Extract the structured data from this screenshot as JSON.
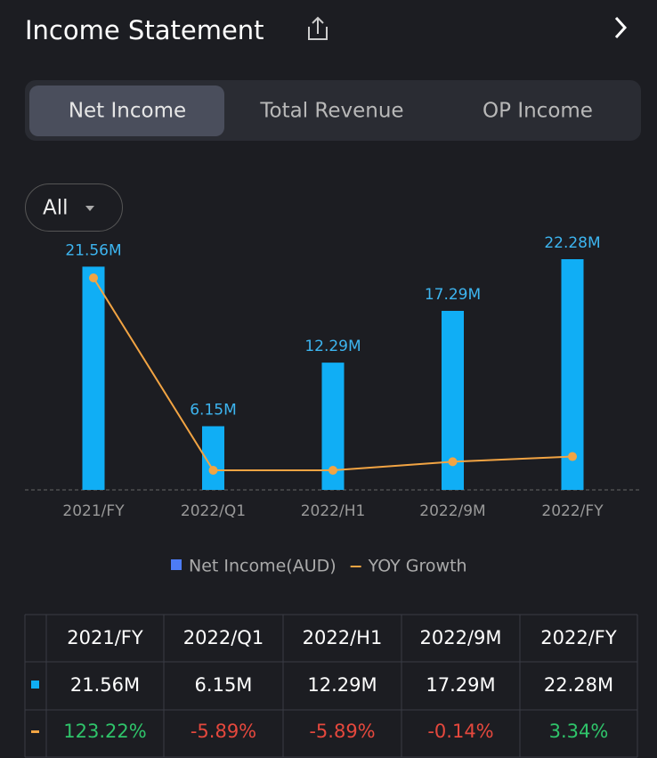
{
  "header": {
    "title": "Income Statement"
  },
  "tabs": [
    "Net Income",
    "Total Revenue",
    "OP Income"
  ],
  "filter": "All",
  "chart_data": {
    "type": "combo",
    "categories": [
      "2021/FY",
      "2022/Q1",
      "2022/H1",
      "2022/9M",
      "2022/FY"
    ],
    "series": [
      {
        "name": "Net Income(AUD)",
        "type": "bar",
        "color": "#10aef5",
        "values": [
          21.56,
          6.15,
          12.29,
          17.29,
          22.28
        ],
        "value_labels": [
          "21.56M",
          "6.15M",
          "12.29M",
          "17.29M",
          "22.28M"
        ]
      },
      {
        "name": "YOY Growth",
        "type": "line",
        "color": "#f2a443",
        "values": [
          123.22,
          -5.89,
          -5.89,
          -0.14,
          3.34
        ],
        "value_labels": [
          "123.22%",
          "-5.89%",
          "-5.89%",
          "-0.14%",
          "3.34%"
        ]
      }
    ],
    "up_color": "#2fc46a",
    "down_color": "#e5483d"
  }
}
